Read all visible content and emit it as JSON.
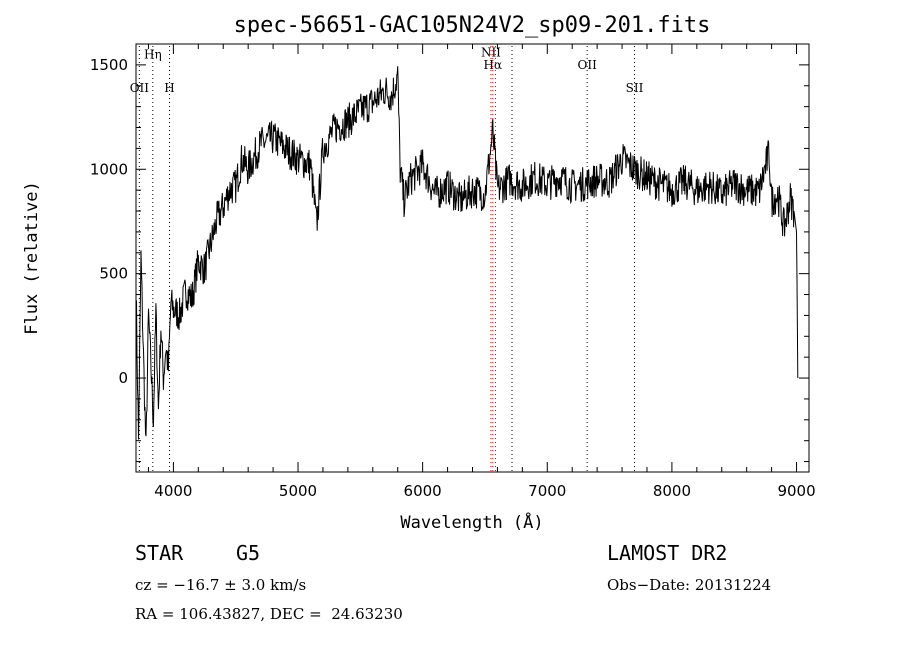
{
  "chart_data": {
    "type": "line",
    "title": "spec-56651-GAC105N24V2_sp09-201.fits",
    "xlabel": "Wavelength (Å)",
    "ylabel": "Flux (relative)",
    "xlim": [
      3700,
      9100
    ],
    "ylim": [
      -450,
      1600
    ],
    "xticks": [
      4000,
      5000,
      6000,
      7000,
      8000,
      9000
    ],
    "yticks": [
      0,
      500,
      1000,
      1500
    ],
    "grid": false,
    "series": [
      {
        "x": [
          3700,
          3720,
          3740,
          3760,
          3780,
          3800,
          3820,
          3840,
          3860,
          3880,
          3900,
          3920,
          3940,
          3960,
          3980,
          4000,
          4050,
          4100,
          4150,
          4200,
          4250,
          4300,
          4350,
          4400,
          4450,
          4500,
          4550,
          4600,
          4650,
          4700,
          4800,
          4900,
          5000,
          5100,
          5150,
          5200,
          5300,
          5400,
          5500,
          5600,
          5700,
          5750,
          5800,
          5820,
          5850,
          5900,
          6000,
          6100,
          6200,
          6300,
          6400,
          6500,
          6563,
          6600,
          6700,
          6800,
          6900,
          7000,
          7100,
          7200,
          7300,
          7400,
          7500,
          7600,
          7700,
          7800,
          7900,
          8000,
          8100,
          8200,
          8300,
          8400,
          8500,
          8600,
          8700,
          8780,
          8800,
          8850,
          8900,
          8950,
          8980,
          9000,
          9010
        ],
        "y": [
          450,
          -300,
          580,
          100,
          -350,
          300,
          50,
          -200,
          320,
          -150,
          250,
          0,
          150,
          40,
          360,
          330,
          300,
          420,
          380,
          560,
          520,
          640,
          760,
          820,
          900,
          920,
          1050,
          1000,
          1060,
          1120,
          1150,
          1100,
          1050,
          1020,
          730,
          1100,
          1200,
          1230,
          1280,
          1320,
          1380,
          1350,
          1450,
          1000,
          850,
          950,
          1020,
          880,
          920,
          850,
          900,
          880,
          1180,
          900,
          950,
          920,
          960,
          930,
          960,
          920,
          930,
          950,
          940,
          1050,
          1000,
          960,
          930,
          900,
          940,
          900,
          920,
          880,
          930,
          900,
          890,
          1080,
          850,
          880,
          720,
          860,
          800,
          700,
          0
        ]
      }
    ],
    "lines": [
      {
        "label": "OII",
        "x": 3727,
        "color": "#000000",
        "label_value": 1370
      },
      {
        "label": "Hη",
        "x": 3835,
        "color": "#000000",
        "label_value": 1530
      },
      {
        "label": "H",
        "x": 3969,
        "color": "#000000",
        "label_value": 1370
      },
      {
        "label": "NII",
        "x": 6548,
        "color": "#cc0000",
        "label_value": 1540
      },
      {
        "label": "Hα",
        "x": 6563,
        "color": "#cc0000",
        "label_value": 1480
      },
      {
        "label": "NII",
        "x": 6584,
        "color": "#cc0000",
        "label_value": null
      },
      {
        "label": "OII",
        "x": 7320,
        "color": "#000000",
        "label_value": 1480
      },
      {
        "label": "SII",
        "x": 6717,
        "color": "#000000",
        "label_value": null
      },
      {
        "label": "SII",
        "x": 7700,
        "color": "#000000",
        "label_value": 1370
      }
    ]
  },
  "info": {
    "class_label": "STAR",
    "subclass": "G5",
    "survey": "LAMOST DR2",
    "cz": "cz = −16.7 ± 3.0 km/s",
    "obs_date": "Obs−Date: 20131224",
    "coords": "RA = 106.43827, DEC =  24.63230"
  }
}
